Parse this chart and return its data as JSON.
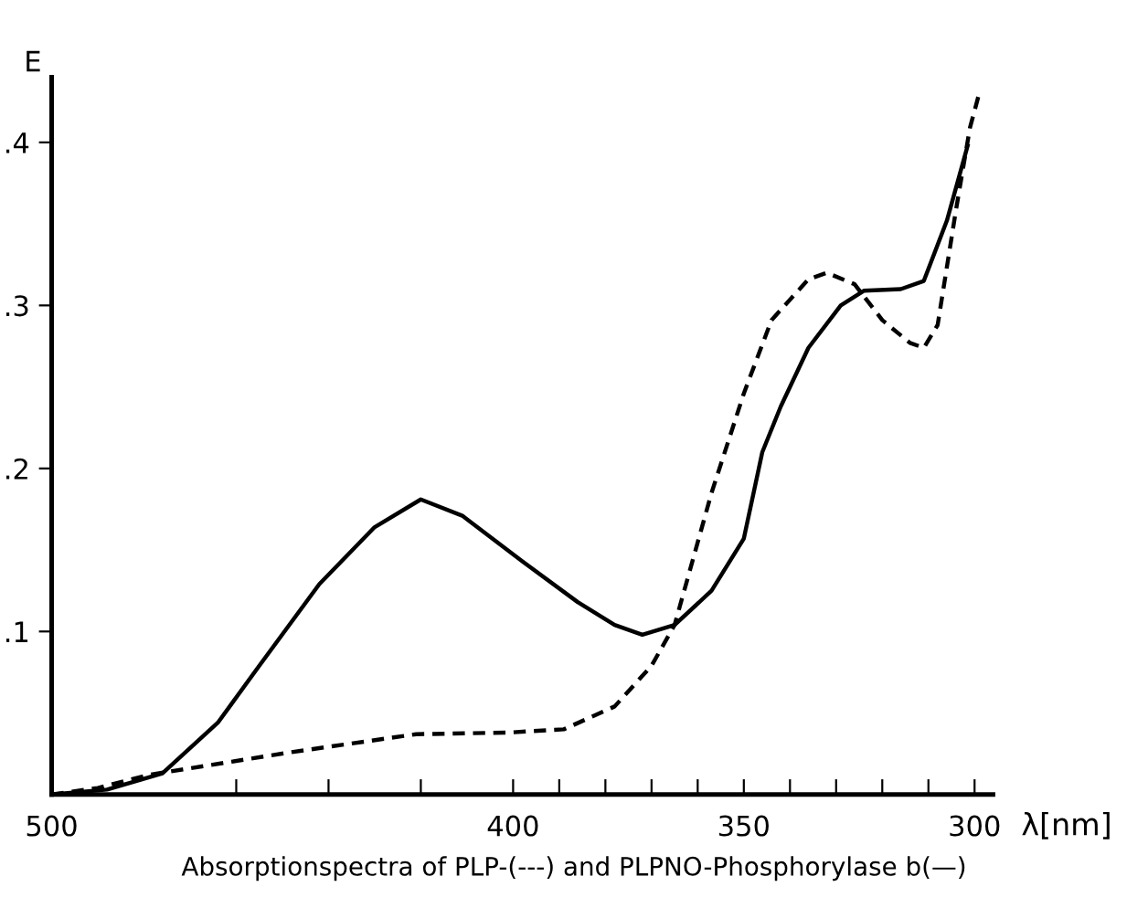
{
  "chart_data": {
    "type": "line",
    "ylabel": "E",
    "xlabel": "λ[nm]",
    "annotations": [
      "Absorptionspectra of PLP-(---) and PLPNO-Phosphorylase b(—)"
    ],
    "xlim": [
      500,
      296
    ],
    "ylim": [
      0,
      0.44
    ],
    "xticks": [
      500,
      {
        "value": 460,
        "label": null
      },
      {
        "value": 440,
        "label": null
      },
      {
        "value": 420,
        "label": null
      },
      400,
      {
        "value": 390,
        "label": null
      },
      {
        "value": 380,
        "label": null
      },
      {
        "value": 370,
        "label": null
      },
      {
        "value": 360,
        "label": null
      },
      350,
      {
        "value": 340,
        "label": null
      },
      {
        "value": 330,
        "label": null
      },
      {
        "value": 320,
        "label": null
      },
      {
        "value": 310,
        "label": null
      },
      300
    ],
    "yticks": [
      {
        "value": 0.1,
        "label": ".1"
      },
      {
        "value": 0.2,
        "label": ".2"
      },
      {
        "value": 0.3,
        "label": ".3"
      },
      {
        "value": 0.4,
        "label": ".4"
      }
    ],
    "grid": false,
    "marker": "none",
    "series": [
      {
        "color": "#000000",
        "line_style": "solid",
        "x": [
          500,
          488,
          476,
          464,
          455,
          442,
          430,
          420,
          411,
          398,
          386,
          378,
          372,
          365,
          357,
          350,
          346,
          342,
          336,
          329,
          324,
          316,
          311,
          306,
          301.5
        ],
        "values": [
          0,
          0.003,
          0.013,
          0.044,
          0.079,
          0.129,
          0.164,
          0.181,
          0.171,
          0.143,
          0.118,
          0.104,
          0.098,
          0.104,
          0.125,
          0.157,
          0.21,
          0.238,
          0.274,
          0.3,
          0.309,
          0.31,
          0.315,
          0.352,
          0.398
        ]
      },
      {
        "color": "#000000",
        "line_style": "dashed",
        "x": [
          500,
          490,
          479,
          448,
          421,
          401,
          389,
          378,
          370,
          365,
          357,
          350,
          344,
          336,
          332,
          326,
          320,
          314,
          311,
          308,
          304,
          301,
          299
        ],
        "values": [
          0,
          0.004,
          0.012,
          0.026,
          0.037,
          0.038,
          0.04,
          0.054,
          0.079,
          0.104,
          0.185,
          0.246,
          0.291,
          0.316,
          0.32,
          0.313,
          0.291,
          0.277,
          0.274,
          0.288,
          0.359,
          0.409,
          0.43
        ]
      }
    ]
  }
}
